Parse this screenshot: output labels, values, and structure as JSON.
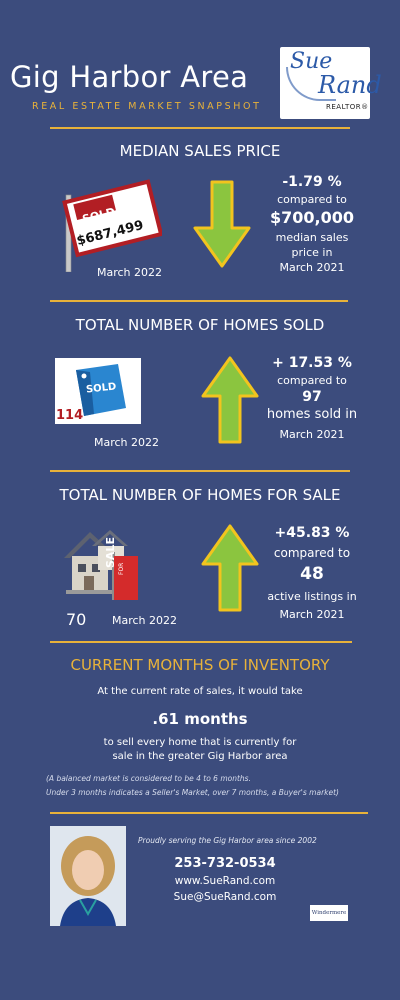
{
  "header": {
    "title": "Gig Harbor Area",
    "subtitle": "REAL ESTATE MARKET SNAPSHOT",
    "logo": {
      "sue": "Sue",
      "rand": "Rand",
      "realtor": "REALTOR®"
    }
  },
  "median": {
    "title": "MEDIAN SALES PRICE",
    "sign_sold": "SOLD",
    "sign_price": "$687,499",
    "period": "March  2022",
    "change": "-1.79 %",
    "compared": "compared to",
    "prior_value": "$700,000",
    "line1": "median sales",
    "line2": "price in",
    "line3": "March 2021",
    "arrow_direction": "down"
  },
  "sold": {
    "title": "TOTAL NUMBER OF HOMES SOLD",
    "tag": "SOLD",
    "count": "114",
    "period": "March  2022",
    "change": "+ 17.53 %",
    "compared": "compared to",
    "prior_value": "97",
    "line1": "homes sold in",
    "line2": "March  2021",
    "arrow_direction": "up"
  },
  "forsale": {
    "title": "TOTAL NUMBER OF HOMES FOR SALE",
    "sign": "SALE",
    "sign_small": "FOR",
    "count": "70",
    "period": "March  2022",
    "change": "+45.83 %",
    "compared": "compared to",
    "prior_value": "48",
    "line1": "active listings in",
    "line2": "March  2021",
    "arrow_direction": "up"
  },
  "inventory": {
    "title": "CURRENT MONTHS OF INVENTORY",
    "intro": "At the current rate of sales, it would take",
    "value": ".61  months",
    "line1": "to sell every home that is currently for",
    "line2": "sale in the greater Gig Harbor area",
    "note1": "(A balanced market is considered to be 4 to 6 months.",
    "note2": "Under 3 months indicates a Seller's Market, over 7 months, a Buyer's market)"
  },
  "footer": {
    "tagline": "Proudly serving the Gig Harbor area since 2002",
    "phone": "253-732-0534",
    "website": "www.SueRand.com",
    "email": "Sue@SueRand.com",
    "brand": "Windermere"
  },
  "colors": {
    "background": "#3c4c7d",
    "accent": "#e8b23a",
    "arrow_fill": "#8bc53f",
    "arrow_stroke": "#f2c41e"
  }
}
